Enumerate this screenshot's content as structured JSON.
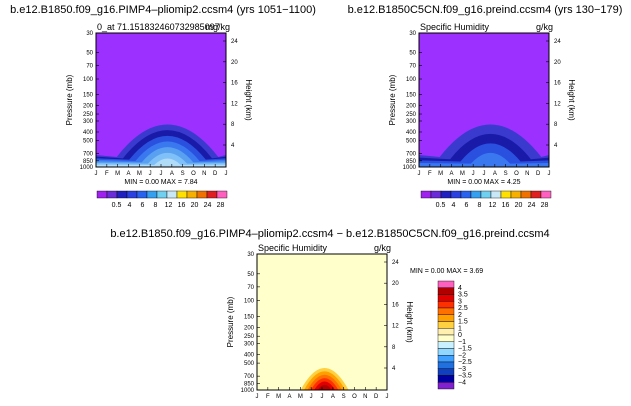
{
  "chart_data": [
    {
      "type": "heatmap",
      "title": "b.e12.B1850.f09_g16.PIMP4–pliomip2.ccsm4 (yrs 1051−1100)",
      "subtitle_left": "0_at 71.151832460732985097",
      "subtitle_right": "mg/kg",
      "ylabel": "Pressure (mb)",
      "ylabel_right": "Height (km)",
      "min_label": "MIN =    0.00  MAX =    7.84",
      "months": [
        "J",
        "F",
        "M",
        "A",
        "M",
        "J",
        "J",
        "A",
        "S",
        "O",
        "N",
        "D",
        "J"
      ],
      "pressure_ticks": [
        "30",
        "50",
        "70",
        "100",
        "150",
        "200",
        "250",
        "300",
        "400",
        "500",
        "700",
        "850",
        "1000"
      ],
      "height_ticks": [
        "24",
        "20",
        "16",
        "12",
        "8",
        "4"
      ],
      "levels": [
        "0.5",
        "4",
        "6",
        "8",
        "12",
        "16",
        "20",
        "24",
        "28"
      ],
      "colors": [
        "#a020f0",
        "#6a2cd8",
        "#2020c0",
        "#2a40e0",
        "#2a62f0",
        "#35a0f0",
        "#70d0f0",
        "#c8e8f8",
        "#ffe000",
        "#f8b000",
        "#f07000",
        "#e02020",
        "#ff60c0"
      ],
      "peak_month": "Jul",
      "peak_value": 7.84
    },
    {
      "type": "heatmap",
      "title": "b.e12.B1850C5CN.f09_g16.preind.ccsm4 (yrs 130−179)",
      "subtitle_left": "Specific Humidity",
      "subtitle_right": "g/kg",
      "ylabel": "Pressure (mb)",
      "ylabel_right": "Height (km)",
      "min_label": "MIN =    0.00  MAX =    4.25",
      "months": [
        "J",
        "F",
        "M",
        "A",
        "M",
        "J",
        "J",
        "A",
        "S",
        "O",
        "N",
        "D",
        "J"
      ],
      "pressure_ticks": [
        "30",
        "50",
        "70",
        "100",
        "150",
        "200",
        "250",
        "300",
        "400",
        "500",
        "700",
        "850",
        "1000"
      ],
      "height_ticks": [
        "24",
        "20",
        "16",
        "12",
        "8",
        "4"
      ],
      "levels": [
        "0.5",
        "4",
        "6",
        "8",
        "12",
        "16",
        "20",
        "24",
        "28"
      ],
      "colors": [
        "#a020f0",
        "#6a2cd8",
        "#2020c0",
        "#2a40e0",
        "#2a62f0",
        "#35a0f0",
        "#70d0f0",
        "#c8e8f8",
        "#ffe000",
        "#f8b000",
        "#f07000",
        "#e02020",
        "#ff60c0"
      ],
      "peak_month": "Jul",
      "peak_value": 4.25
    },
    {
      "type": "heatmap",
      "title": "b.e12.B1850.f09_g16.PIMP4–pliomip2.ccsm4  −  b.e12.B1850C5CN.f09_g16.preind.ccsm4",
      "subtitle_left": "Specific Humidity",
      "subtitle_right": "g/kg",
      "ylabel": "Pressure (mb)",
      "ylabel_right": "Height (km)",
      "min_label": "MIN =    0.00  MAX =    3.69",
      "months": [
        "J",
        "F",
        "M",
        "A",
        "M",
        "J",
        "J",
        "A",
        "S",
        "O",
        "N",
        "D",
        "J"
      ],
      "pressure_ticks": [
        "30",
        "50",
        "70",
        "100",
        "150",
        "200",
        "250",
        "300",
        "400",
        "500",
        "700",
        "850",
        "1000"
      ],
      "height_ticks": [
        "24",
        "20",
        "16",
        "12",
        "8",
        "4"
      ],
      "levels": [
        "4",
        "3.5",
        "3",
        "2.5",
        "2",
        "1.5",
        "1",
        "0",
        "−1",
        "−1.5",
        "−2",
        "−2.5",
        "−3",
        "−3.5",
        "−4"
      ],
      "colors": [
        "#ff60c0",
        "#b00000",
        "#e00000",
        "#ff3000",
        "#ff7000",
        "#ffa000",
        "#ffd040",
        "#fff0b0",
        "#ffffcc",
        "#c8f0ff",
        "#90d8ff",
        "#40a0ff",
        "#2070e0",
        "#1040c0",
        "#0000a0",
        "#8020d0"
      ],
      "peak_month": "Jul",
      "peak_value": 3.69
    }
  ]
}
